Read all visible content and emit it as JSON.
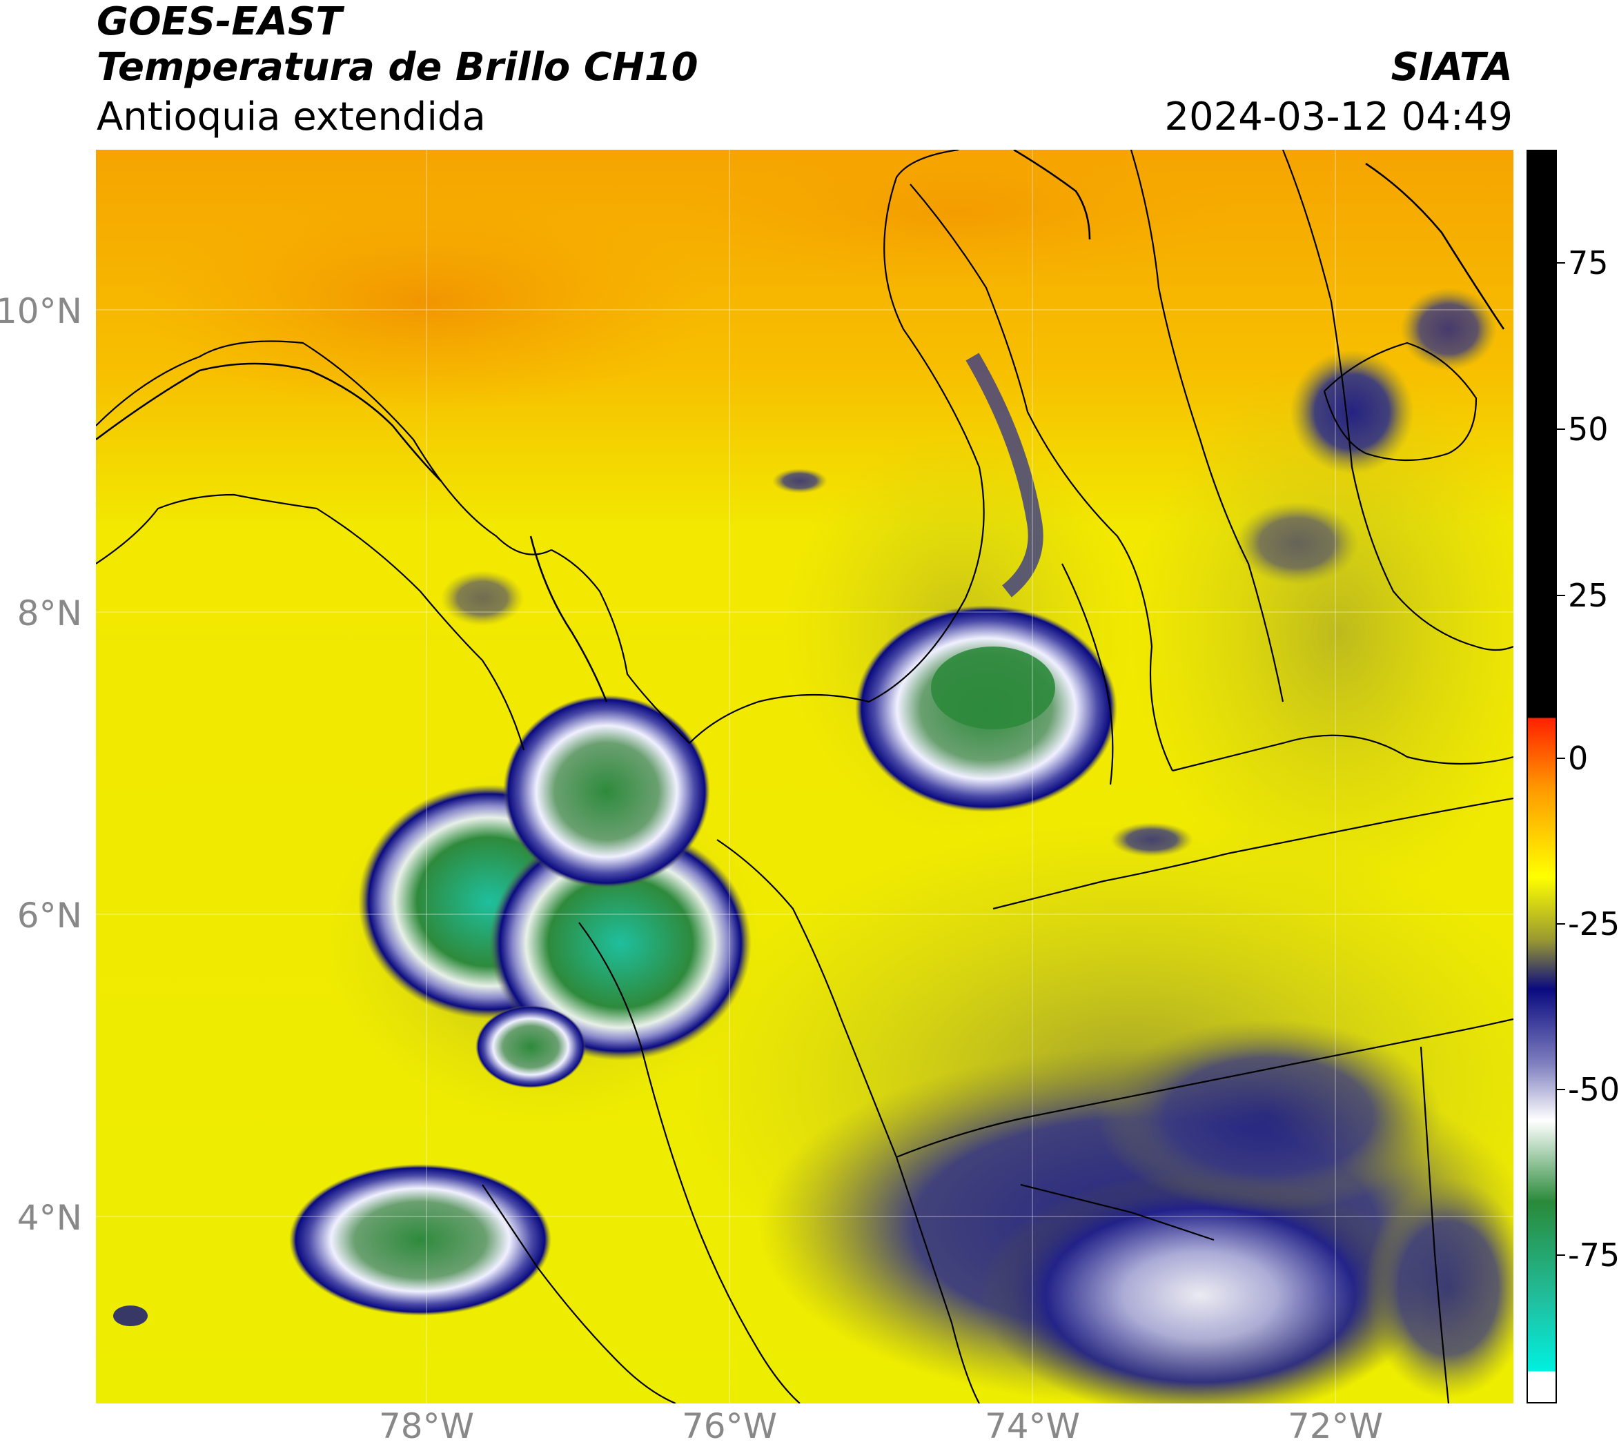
{
  "header": {
    "line1": "GOES-EAST",
    "line2": "Temperatura de Brillo CH10",
    "line3": "Antioquia extendida",
    "org": "SIATA",
    "datetime": "2024-03-12 04:49"
  },
  "map": {
    "lat_labels": [
      "10°N",
      "8°N",
      "6°N",
      "4°N"
    ],
    "lon_labels": [
      "78°W",
      "76°W",
      "74°W",
      "72°W"
    ],
    "background_color": "#f2e800",
    "ocean_north_color": "#f5a800"
  },
  "colorbar": {
    "labels": [
      "75",
      "50",
      "25",
      "0",
      "-25",
      "-50",
      "-75"
    ],
    "colors": {
      "top": "#000000",
      "red": "#ff2000",
      "orange": "#ff9a00",
      "yellow": "#ffff00",
      "olive": "#9a9a30",
      "navy": "#0a0a80",
      "white": "#ffffff",
      "green": "#2a8a3a",
      "cyan": "#00f0e0"
    }
  }
}
